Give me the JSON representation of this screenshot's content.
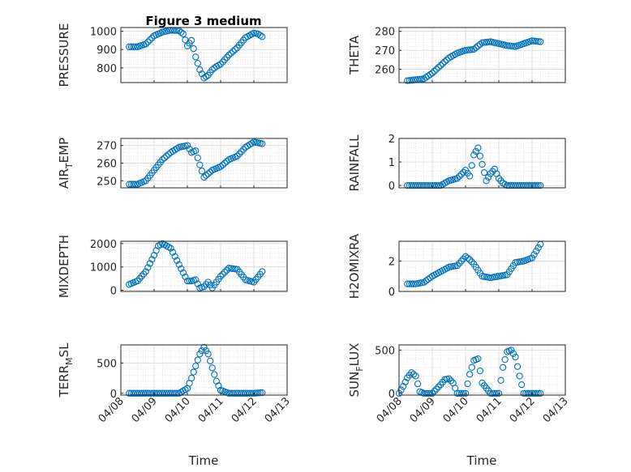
{
  "figure_title": "Figure 3 medium",
  "x_axis_label": "Time",
  "marker_color": "#0072bd",
  "chart_data": [
    {
      "type": "scatter",
      "title": "Figure 3 medium",
      "ylabel": "PRESSURE",
      "ylabel_sub": "",
      "xlim": [
        "04/08",
        "04/13"
      ],
      "xticks": [
        "04/08",
        "04/09",
        "04/10",
        "04/11",
        "04/12",
        "04/13"
      ],
      "show_xticklabels": false,
      "ylim": [
        720,
        1020
      ],
      "yticks": [
        800,
        900,
        1000
      ],
      "grid": "major-minor",
      "x": [
        "04/08 06:00",
        "04/08 12:00",
        "04/08 18:00",
        "04/09 00:00",
        "04/09 06:00",
        "04/09 12:00",
        "04/09 18:00",
        "04/09 21:00",
        "04/10 00:00",
        "04/10 03:00",
        "04/10 06:00",
        "04/10 09:00",
        "04/10 12:00",
        "04/10 15:00",
        "04/10 18:00",
        "04/10 21:00",
        "04/11 00:00",
        "04/11 06:00",
        "04/11 12:00",
        "04/11 18:00",
        "04/12 00:00",
        "04/12 03:00",
        "04/12 06:00"
      ],
      "y": [
        915,
        915,
        930,
        975,
        995,
        1005,
        1003,
        985,
        920,
        950,
        860,
        790,
        745,
        760,
        790,
        808,
        820,
        870,
        910,
        965,
        990,
        985,
        970
      ]
    },
    {
      "type": "scatter",
      "title": "",
      "ylabel": "THETA",
      "ylabel_sub": "",
      "xlim": [
        "04/08",
        "04/13"
      ],
      "xticks": [
        "04/08",
        "04/09",
        "04/10",
        "04/11",
        "04/12",
        "04/13"
      ],
      "show_xticklabels": false,
      "ylim": [
        253,
        282
      ],
      "yticks": [
        260,
        270,
        280
      ],
      "grid": "major-minor",
      "x": [
        "04/08 06:00",
        "04/08 12:00",
        "04/08 18:00",
        "04/09 00:00",
        "04/09 06:00",
        "04/09 12:00",
        "04/09 18:00",
        "04/10 00:00",
        "04/10 06:00",
        "04/10 12:00",
        "04/10 18:00",
        "04/11 00:00",
        "04/11 06:00",
        "04/11 12:00",
        "04/11 18:00",
        "04/12 00:00",
        "04/12 06:00"
      ],
      "y": [
        254,
        254.5,
        255,
        258,
        262,
        266,
        268.5,
        270,
        270.5,
        274,
        274.5,
        273.5,
        272.5,
        272,
        273.5,
        275,
        274.5
      ]
    },
    {
      "type": "scatter",
      "title": "",
      "ylabel": "AIR",
      "ylabel_sub": "T",
      "ylabel_after": "EMP",
      "xlim": [
        "04/08",
        "04/13"
      ],
      "xticks": [
        "04/08",
        "04/09",
        "04/10",
        "04/11",
        "04/12",
        "04/13"
      ],
      "show_xticklabels": false,
      "ylim": [
        246,
        274
      ],
      "yticks": [
        250,
        260,
        270
      ],
      "grid": "major-minor",
      "x": [
        "04/08 06:00",
        "04/08 12:00",
        "04/08 18:00",
        "04/09 00:00",
        "04/09 06:00",
        "04/09 12:00",
        "04/09 18:00",
        "04/10 00:00",
        "04/10 03:00",
        "04/10 06:00",
        "04/10 09:00",
        "04/10 12:00",
        "04/10 18:00",
        "04/11 00:00",
        "04/11 06:00",
        "04/11 12:00",
        "04/11 18:00",
        "04/12 00:00",
        "04/12 06:00"
      ],
      "y": [
        248,
        248,
        250,
        256,
        262,
        266,
        269,
        270,
        266,
        267,
        259,
        252,
        256,
        258,
        262,
        264,
        269,
        272,
        271
      ]
    },
    {
      "type": "scatter",
      "title": "",
      "ylabel": "RAINFALL",
      "ylabel_sub": "",
      "xlim": [
        "04/08",
        "04/13"
      ],
      "xticks": [
        "04/08",
        "04/09",
        "04/10",
        "04/11",
        "04/12",
        "04/13"
      ],
      "show_xticklabels": false,
      "ylim": [
        -0.1,
        2
      ],
      "yticks": [
        0,
        1,
        2
      ],
      "grid": "major-minor",
      "x": [
        "04/08 06:00",
        "04/08 18:00",
        "04/09 06:00",
        "04/09 12:00",
        "04/09 18:00",
        "04/10 00:00",
        "04/10 03:00",
        "04/10 06:00",
        "04/10 09:00",
        "04/10 12:00",
        "04/10 15:00",
        "04/10 18:00",
        "04/10 21:00",
        "04/11 00:00",
        "04/11 03:00",
        "04/11 06:00",
        "04/11 12:00",
        "04/11 18:00",
        "04/12 00:00",
        "04/12 06:00"
      ],
      "y": [
        0,
        0,
        0,
        0.2,
        0.3,
        0.65,
        0.4,
        1.3,
        1.6,
        0.9,
        0.2,
        0.5,
        0.7,
        0.3,
        0.1,
        0,
        0,
        0,
        0,
        0
      ]
    },
    {
      "type": "scatter",
      "title": "",
      "ylabel": "MIXDEPTH",
      "ylabel_sub": "",
      "xlim": [
        "04/08",
        "04/13"
      ],
      "xticks": [
        "04/08",
        "04/09",
        "04/10",
        "04/11",
        "04/12",
        "04/13"
      ],
      "show_xticklabels": false,
      "ylim": [
        -50,
        2100
      ],
      "yticks": [
        0,
        1000,
        2000
      ],
      "grid": "major-minor",
      "x": [
        "04/08 06:00",
        "04/08 12:00",
        "04/08 18:00",
        "04/09 00:00",
        "04/09 03:00",
        "04/09 06:00",
        "04/09 12:00",
        "04/09 18:00",
        "04/10 00:00",
        "04/10 03:00",
        "04/10 06:00",
        "04/10 09:00",
        "04/10 12:00",
        "04/10 15:00",
        "04/10 18:00",
        "04/11 00:00",
        "04/11 06:00",
        "04/11 12:00",
        "04/11 18:00",
        "04/12 00:00",
        "04/12 06:00"
      ],
      "y": [
        250,
        400,
        800,
        1500,
        1900,
        2000,
        1800,
        1100,
        400,
        400,
        450,
        100,
        150,
        350,
        100,
        600,
        950,
        900,
        450,
        350,
        800
      ]
    },
    {
      "type": "scatter",
      "title": "",
      "ylabel": "H2OMIXRA",
      "ylabel_sub": "",
      "xlim": [
        "04/08",
        "04/13"
      ],
      "xticks": [
        "04/08",
        "04/09",
        "04/10",
        "04/11",
        "04/12",
        "04/13"
      ],
      "show_xticklabels": false,
      "ylim": [
        0,
        3.3
      ],
      "yticks": [
        0,
        2
      ],
      "grid": "major-minor",
      "x": [
        "04/08 06:00",
        "04/08 12:00",
        "04/08 18:00",
        "04/09 00:00",
        "04/09 06:00",
        "04/09 12:00",
        "04/09 18:00",
        "04/10 00:00",
        "04/10 03:00",
        "04/10 06:00",
        "04/10 12:00",
        "04/10 18:00",
        "04/11 00:00",
        "04/11 06:00",
        "04/11 12:00",
        "04/11 18:00",
        "04/12 00:00",
        "04/12 06:00"
      ],
      "y": [
        0.5,
        0.5,
        0.6,
        1.0,
        1.3,
        1.6,
        1.7,
        2.3,
        2.1,
        1.8,
        1.0,
        0.9,
        1.0,
        1.1,
        1.9,
        2.0,
        2.2,
        3.1
      ]
    },
    {
      "type": "scatter",
      "title": "",
      "ylabel": "TERR",
      "ylabel_sub": "M",
      "ylabel_after": "SL",
      "xlim": [
        "04/08",
        "04/13"
      ],
      "xticks": [
        "04/08",
        "04/09",
        "04/10",
        "04/11",
        "04/12",
        "04/13"
      ],
      "xticklabels": [
        "04/08",
        "04/09",
        "04/10",
        "04/11",
        "04/12",
        "04/13"
      ],
      "show_xticklabels": true,
      "ylim": [
        -30,
        800
      ],
      "yticks": [
        0,
        500
      ],
      "grid": "major-minor",
      "x": [
        "04/08 06:00",
        "04/08 18:00",
        "04/09 06:00",
        "04/09 18:00",
        "04/10 00:00",
        "04/10 03:00",
        "04/10 06:00",
        "04/10 09:00",
        "04/10 12:00",
        "04/10 15:00",
        "04/10 18:00",
        "04/10 21:00",
        "04/11 00:00",
        "04/11 06:00",
        "04/11 18:00",
        "04/12 00:00",
        "04/12 06:00"
      ],
      "y": [
        0,
        0,
        0,
        0,
        80,
        250,
        450,
        650,
        760,
        650,
        420,
        200,
        50,
        0,
        0,
        0,
        10
      ]
    },
    {
      "type": "scatter",
      "title": "",
      "ylabel": "SUN",
      "ylabel_sub": "F",
      "ylabel_after": "LUX",
      "xlim": [
        "04/08",
        "04/13"
      ],
      "xticks": [
        "04/08",
        "04/09",
        "04/10",
        "04/11",
        "04/12",
        "04/13"
      ],
      "xticklabels": [
        "04/08",
        "04/09",
        "04/10",
        "04/11",
        "04/12",
        "04/13"
      ],
      "show_xticklabels": true,
      "ylim": [
        -20,
        560
      ],
      "yticks": [
        0,
        500
      ],
      "grid": "major-minor",
      "x": [
        "04/08 00:00",
        "04/08 03:00",
        "04/08 06:00",
        "04/08 09:00",
        "04/08 12:00",
        "04/08 15:00",
        "04/08 18:00",
        "04/09 00:00",
        "04/09 06:00",
        "04/09 09:00",
        "04/09 12:00",
        "04/09 15:00",
        "04/09 18:00",
        "04/10 00:00",
        "04/10 03:00",
        "04/10 06:00",
        "04/10 09:00",
        "04/10 12:00",
        "04/10 18:00",
        "04/11 00:00",
        "04/11 03:00",
        "04/11 06:00",
        "04/11 09:00",
        "04/11 12:00",
        "04/11 15:00",
        "04/11 18:00",
        "04/12 00:00",
        "04/12 06:00"
      ],
      "y": [
        0,
        80,
        180,
        240,
        200,
        20,
        0,
        0,
        100,
        160,
        170,
        120,
        0,
        0,
        220,
        380,
        400,
        120,
        0,
        0,
        300,
        480,
        500,
        420,
        200,
        0,
        0,
        0
      ]
    }
  ]
}
